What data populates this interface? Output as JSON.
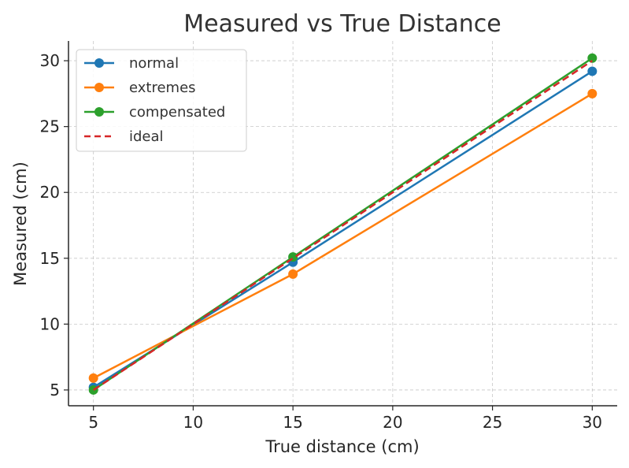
{
  "chart_data": {
    "type": "line",
    "title": "Measured vs True Distance",
    "xlabel": "True distance (cm)",
    "ylabel": "Measured (cm)",
    "x": [
      5,
      15,
      30
    ],
    "xlim": [
      3.75,
      31.25
    ],
    "ylim": [
      3.8,
      31.5
    ],
    "xticks": [
      5,
      10,
      15,
      20,
      25,
      30
    ],
    "yticks": [
      5,
      10,
      15,
      20,
      25,
      30
    ],
    "grid": true,
    "legend_position": "top-left",
    "series": [
      {
        "name": "normal",
        "values": [
          5.2,
          14.7,
          29.2
        ],
        "color": "#1f77b4",
        "style": "solid",
        "marker": "circle"
      },
      {
        "name": "extremes",
        "values": [
          5.9,
          13.8,
          27.5
        ],
        "color": "#ff7f0e",
        "style": "solid",
        "marker": "circle"
      },
      {
        "name": "compensated",
        "values": [
          5.0,
          15.1,
          30.2
        ],
        "color": "#2ca02c",
        "style": "solid",
        "marker": "circle"
      },
      {
        "name": "ideal",
        "values": [
          5,
          15,
          30
        ],
        "color": "#d62728",
        "style": "dashed",
        "marker": "none"
      }
    ]
  }
}
